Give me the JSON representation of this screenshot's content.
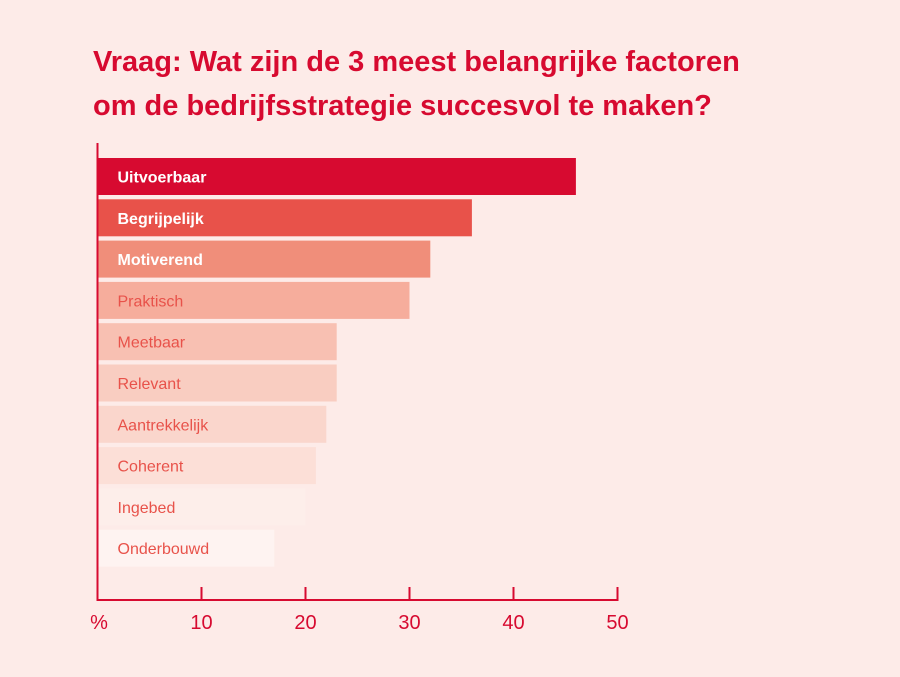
{
  "chart_data": {
    "type": "bar",
    "orientation": "horizontal",
    "title": "Vraag: Wat zijn de 3 meest belangrijke factoren om de bedrijfsstrategie succesvol te maken?",
    "title_lines": [
      "Vraag: Wat zijn de 3 meest belangrijke factoren",
      "om de bedrijfsstrategie succesvol te maken?"
    ],
    "categories": [
      "Uitvoerbaar",
      "Begrijpelijk",
      "Motiverend",
      "Praktisch",
      "Meetbaar",
      "Relevant",
      "Aantrekkelijk",
      "Coherent",
      "Ingebed",
      "Onderbouwd"
    ],
    "values": [
      46,
      36,
      32,
      30,
      23,
      23,
      22,
      21,
      20,
      17
    ],
    "colors": [
      "#d70a30",
      "#e8524a",
      "#f08e7a",
      "#f6ad9c",
      "#f8c0b2",
      "#f9cdc1",
      "#fad6cc",
      "#fcdfd7",
      "#fdeeea",
      "#fef3f1"
    ],
    "label_colors": [
      "#ffffff",
      "#ffffff",
      "#ffffff",
      "#e8524a",
      "#e8524a",
      "#e8524a",
      "#e8524a",
      "#e8524a",
      "#e8524a",
      "#e8524a"
    ],
    "xlabel": "%",
    "xlim": [
      0,
      50
    ],
    "xticks": [
      10,
      20,
      30,
      40,
      50
    ],
    "grid": false,
    "axis_color": "#d70a30"
  }
}
